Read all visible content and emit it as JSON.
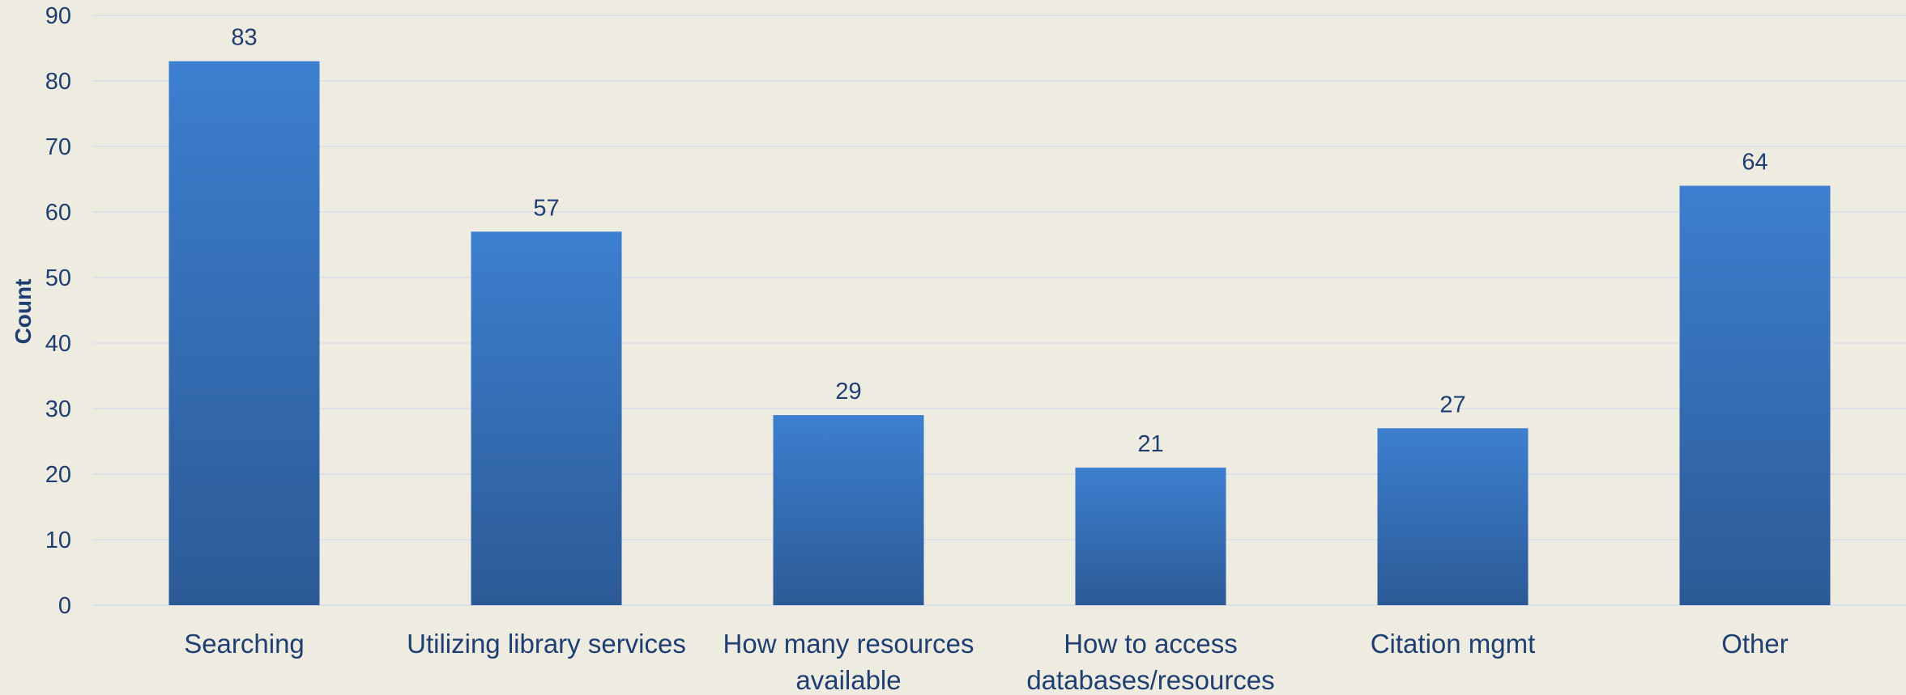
{
  "chart_data": {
    "type": "bar",
    "title": "",
    "xlabel": "",
    "ylabel": "Count",
    "ylim": [
      0,
      90
    ],
    "y_ticks": [
      0,
      10,
      20,
      30,
      40,
      50,
      60,
      70,
      80,
      90
    ],
    "grid": true,
    "legend": "none",
    "categories": [
      [
        "Searching"
      ],
      [
        "Utilizing library services"
      ],
      [
        "How many resources",
        "available"
      ],
      [
        "How to access",
        "databases/resources"
      ],
      [
        "Citation mgmt"
      ],
      [
        "Other"
      ]
    ],
    "series": [
      {
        "values": [
          83,
          57,
          29,
          21,
          27,
          64
        ]
      }
    ]
  },
  "colors": {
    "background": "#eeebe1",
    "bar_top": "#3d7fd0",
    "bar_bottom": "#2c5a96",
    "text": "#1f3f73",
    "gridline": "#d8e0ea"
  }
}
